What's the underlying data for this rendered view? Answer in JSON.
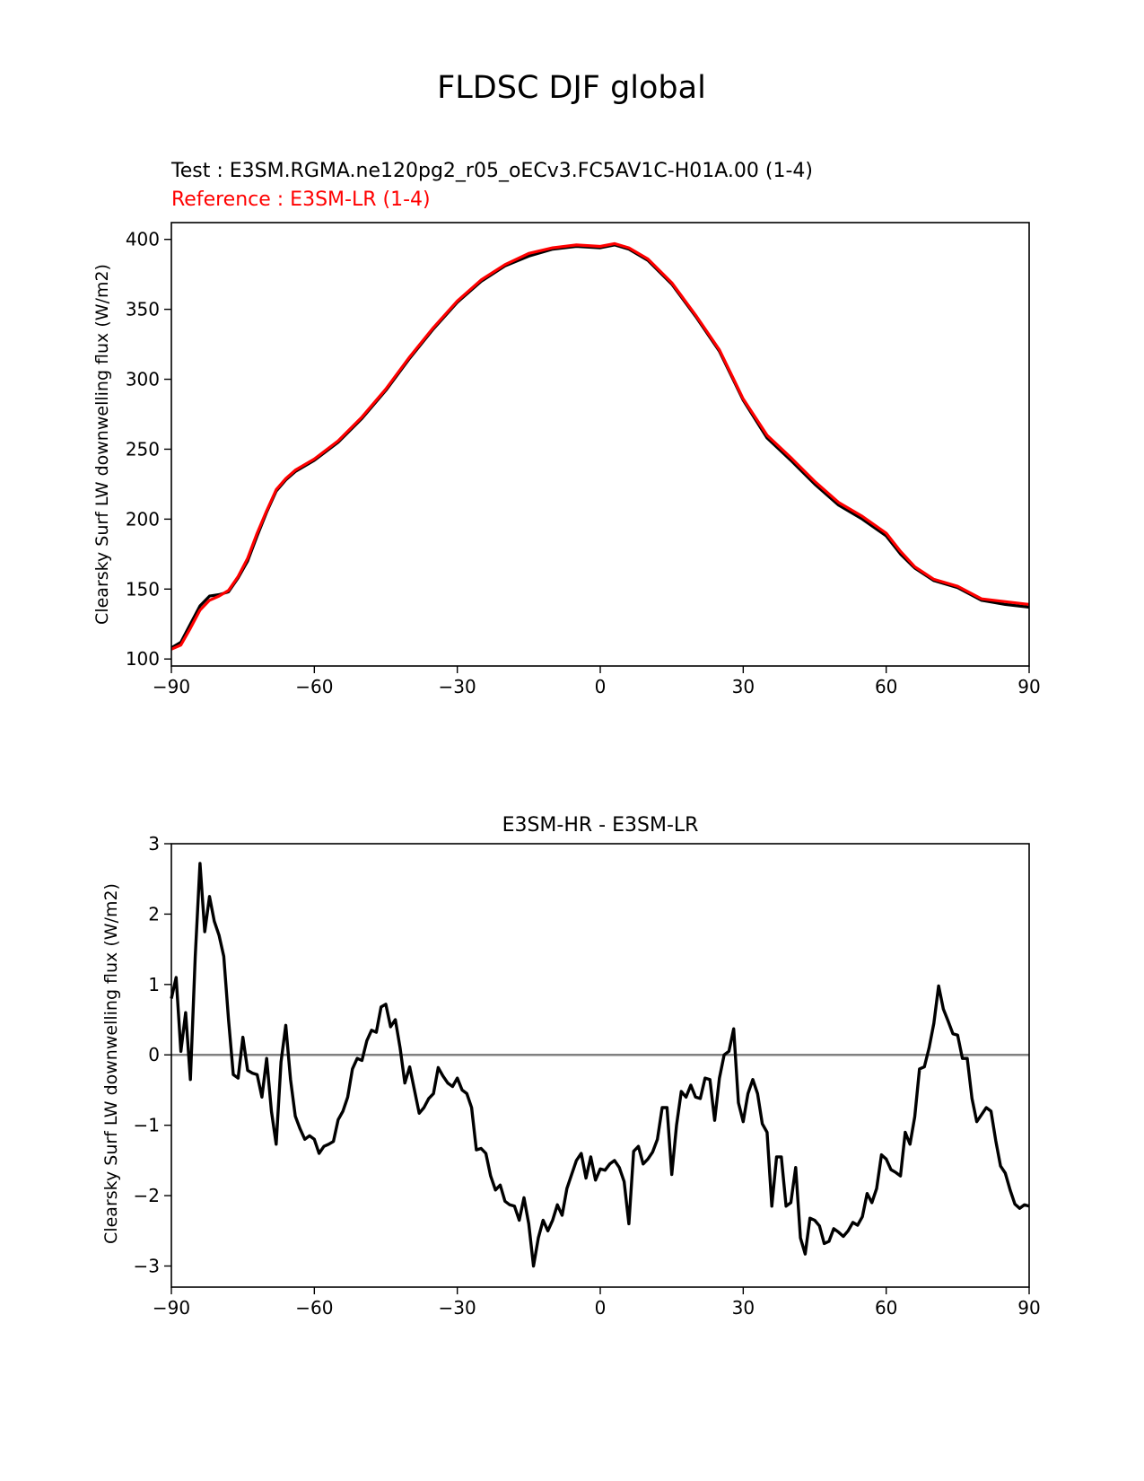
{
  "figure_title": "FLDSC DJF global",
  "colors": {
    "test": "#000000",
    "reference": "#ff0000",
    "zero_line": "#808080",
    "axes": "#000000"
  },
  "chart_data": [
    {
      "type": "line",
      "panel": "top",
      "title": "",
      "subtitle_test": "Test : E3SM.RGMA.ne120pg2_r05_oECv3.FC5AV1C-H01A.00 (1-4)",
      "subtitle_reference": "Reference : E3SM-LR (1-4)",
      "xlabel": "",
      "ylabel": "Clearsky Surf LW downwelling flux (W/m2)",
      "xlim": [
        -90,
        90
      ],
      "ylim": [
        95,
        412
      ],
      "xticks": [
        -90,
        -60,
        -30,
        0,
        30,
        60,
        90
      ],
      "xtick_labels": [
        "−90",
        "−60",
        "−30",
        "0",
        "30",
        "60",
        "90"
      ],
      "yticks": [
        100,
        150,
        200,
        250,
        300,
        350,
        400
      ],
      "ytick_labels": [
        "100",
        "150",
        "200",
        "250",
        "300",
        "350",
        "400"
      ],
      "grid": false,
      "series": [
        {
          "name": "Test",
          "color": "#000000",
          "x": [
            -90,
            -88,
            -86,
            -84,
            -82,
            -80,
            -78,
            -76,
            -74,
            -72,
            -70,
            -68,
            -66,
            -64,
            -60,
            -55,
            -50,
            -45,
            -40,
            -35,
            -30,
            -25,
            -20,
            -15,
            -10,
            -5,
            0,
            3,
            6,
            10,
            15,
            20,
            25,
            28,
            30,
            35,
            40,
            45,
            50,
            55,
            60,
            63,
            66,
            70,
            75,
            80,
            85,
            90
          ],
          "y": [
            108,
            112,
            125,
            138,
            145,
            146,
            148,
            158,
            170,
            188,
            205,
            220,
            228,
            234,
            242,
            255,
            272,
            292,
            315,
            336,
            355,
            370,
            381,
            388,
            393,
            395,
            394,
            396,
            393,
            385,
            368,
            345,
            320,
            299,
            285,
            258,
            242,
            225,
            210,
            200,
            188,
            175,
            165,
            156,
            151,
            142,
            139,
            137
          ]
        },
        {
          "name": "Reference",
          "color": "#ff0000",
          "x": [
            -90,
            -88,
            -86,
            -84,
            -82,
            -80,
            -78,
            -76,
            -74,
            -72,
            -70,
            -68,
            -66,
            -64,
            -60,
            -55,
            -50,
            -45,
            -40,
            -35,
            -30,
            -25,
            -20,
            -15,
            -10,
            -5,
            0,
            3,
            6,
            10,
            15,
            20,
            25,
            28,
            30,
            35,
            40,
            45,
            50,
            55,
            60,
            63,
            66,
            70,
            75,
            80,
            85,
            90
          ],
          "y": [
            107,
            110,
            122,
            135,
            142,
            145,
            149,
            159,
            172,
            190,
            206,
            221,
            229,
            235,
            243,
            256,
            273,
            293,
            316,
            337,
            356,
            371,
            382,
            390,
            394,
            396,
            395,
            397,
            394,
            386,
            369,
            346,
            321,
            300,
            286,
            260,
            244,
            227,
            212,
            202,
            190,
            177,
            166,
            157,
            152,
            143,
            141,
            139
          ]
        }
      ]
    },
    {
      "type": "line",
      "panel": "bottom",
      "title": "E3SM-HR - E3SM-LR",
      "xlabel": "",
      "ylabel": "Clearsky Surf LW downwelling flux (W/m2)",
      "xlim": [
        -90,
        90
      ],
      "ylim": [
        -3.3,
        3.0
      ],
      "xticks": [
        -90,
        -60,
        -30,
        0,
        30,
        60,
        90
      ],
      "xtick_labels": [
        "−90",
        "−60",
        "−30",
        "0",
        "30",
        "60",
        "90"
      ],
      "yticks": [
        -3,
        -2,
        -1,
        0,
        1,
        2,
        3
      ],
      "ytick_labels": [
        "−3",
        "−2",
        "−1",
        "0",
        "1",
        "2",
        "3"
      ],
      "grid": false,
      "zero_line": 0,
      "series": [
        {
          "name": "E3SM-HR - E3SM-LR",
          "color": "#000000",
          "x": [
            -90,
            -89,
            -88,
            -87,
            -86,
            -85,
            -84,
            -83,
            -82,
            -81,
            -80,
            -79,
            -78,
            -77,
            -76,
            -75,
            -74,
            -73,
            -72,
            -71,
            -70,
            -69,
            -68,
            -67,
            -66,
            -65,
            -64,
            -63,
            -62,
            -61,
            -60,
            -59,
            -58,
            -57,
            -56,
            -55,
            -54,
            -53,
            -52,
            -51,
            -50,
            -49,
            -48,
            -47,
            -46,
            -45,
            -44,
            -43,
            -42,
            -41,
            -40,
            -39,
            -38,
            -37,
            -36,
            -35,
            -34,
            -33,
            -32,
            -31,
            -30,
            -29,
            -28,
            -27,
            -26,
            -25,
            -24,
            -23,
            -22,
            -21,
            -20,
            -19,
            -18,
            -17,
            -16,
            -15,
            -14,
            -13,
            -12,
            -11,
            -10,
            -9,
            -8,
            -7,
            -6,
            -5,
            -4,
            -3,
            -2,
            -1,
            0,
            1,
            2,
            3,
            4,
            5,
            6,
            7,
            8,
            9,
            10,
            11,
            12,
            13,
            14,
            15,
            16,
            17,
            18,
            19,
            20,
            21,
            22,
            23,
            24,
            25,
            26,
            27,
            28,
            29,
            30,
            31,
            32,
            33,
            34,
            35,
            36,
            37,
            38,
            39,
            40,
            41,
            42,
            43,
            44,
            45,
            46,
            47,
            48,
            49,
            50,
            51,
            52,
            53,
            54,
            55,
            56,
            57,
            58,
            59,
            60,
            61,
            62,
            63,
            64,
            65,
            66,
            67,
            68,
            69,
            70,
            71,
            72,
            73,
            74,
            75,
            76,
            77,
            78,
            79,
            80,
            81,
            82,
            83,
            84,
            85,
            86,
            87,
            88,
            89,
            90
          ],
          "y": [
            0.8,
            1.1,
            0.05,
            0.6,
            -0.35,
            1.4,
            2.72,
            1.75,
            2.25,
            1.9,
            1.7,
            1.4,
            0.5,
            -0.28,
            -0.33,
            0.25,
            -0.22,
            -0.26,
            -0.28,
            -0.6,
            -0.05,
            -0.8,
            -1.27,
            -0.1,
            0.42,
            -0.35,
            -0.87,
            -1.05,
            -1.2,
            -1.15,
            -1.2,
            -1.4,
            -1.3,
            -1.27,
            -1.23,
            -0.92,
            -0.8,
            -0.6,
            -0.2,
            -0.05,
            -0.08,
            0.2,
            0.35,
            0.32,
            0.68,
            0.72,
            0.4,
            0.5,
            0.1,
            -0.4,
            -0.17,
            -0.5,
            -0.83,
            -0.75,
            -0.62,
            -0.55,
            -0.18,
            -0.3,
            -0.4,
            -0.45,
            -0.33,
            -0.5,
            -0.55,
            -0.75,
            -1.35,
            -1.33,
            -1.4,
            -1.72,
            -1.92,
            -1.85,
            -2.08,
            -2.13,
            -2.15,
            -2.35,
            -2.03,
            -2.4,
            -3.0,
            -2.6,
            -2.35,
            -2.5,
            -2.35,
            -2.13,
            -2.28,
            -1.9,
            -1.7,
            -1.5,
            -1.4,
            -1.75,
            -1.45,
            -1.78,
            -1.62,
            -1.64,
            -1.55,
            -1.5,
            -1.6,
            -1.8,
            -2.4,
            -1.37,
            -1.3,
            -1.55,
            -1.48,
            -1.38,
            -1.2,
            -0.75,
            -0.75,
            -1.7,
            -1.0,
            -0.52,
            -0.6,
            -0.43,
            -0.6,
            -0.62,
            -0.33,
            -0.35,
            -0.93,
            -0.33,
            0.0,
            0.05,
            0.37,
            -0.68,
            -0.95,
            -0.55,
            -0.35,
            -0.55,
            -0.98,
            -1.1,
            -2.15,
            -1.45,
            -1.45,
            -2.15,
            -2.1,
            -1.6,
            -2.6,
            -2.83,
            -2.32,
            -2.35,
            -2.43,
            -2.68,
            -2.65,
            -2.47,
            -2.52,
            -2.58,
            -2.5,
            -2.38,
            -2.42,
            -2.3,
            -1.97,
            -2.1,
            -1.9,
            -1.42,
            -1.48,
            -1.63,
            -1.67,
            -1.72,
            -1.1,
            -1.27,
            -0.88,
            -0.2,
            -0.17,
            0.1,
            0.45,
            0.98,
            0.65,
            0.48,
            0.3,
            0.28,
            -0.05,
            -0.05,
            -0.62,
            -0.95,
            -0.85,
            -0.75,
            -0.8,
            -1.22,
            -1.58,
            -1.68,
            -1.92,
            -2.12,
            -2.18,
            -2.13,
            -2.15
          ]
        }
      ]
    }
  ]
}
